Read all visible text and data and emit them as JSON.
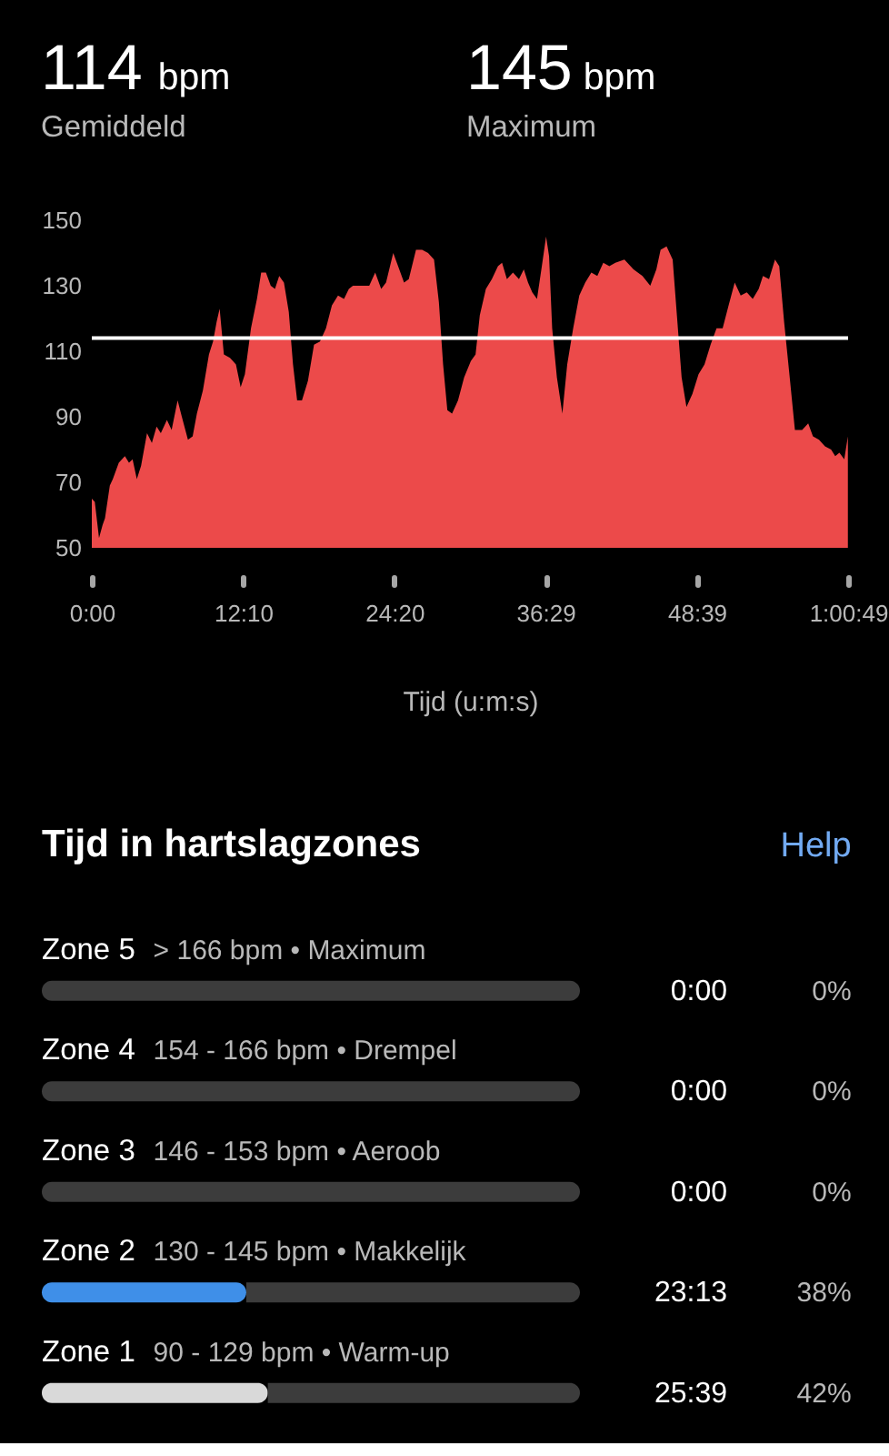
{
  "chart_data": [
    {
      "type": "area",
      "xlabel": "Tijd (u:m:s)",
      "annotations": [
        "114 bpm",
        "Gemiddeld",
        "145 bpm",
        "Maximum"
      ],
      "xlim": [
        0,
        60.817
      ],
      "xticks": [
        {
          "value": 0,
          "label": "0:00"
        },
        {
          "value": 12.167,
          "label": "12:10"
        },
        {
          "value": 24.333,
          "label": "24:20"
        },
        {
          "value": 36.483,
          "label": "36:29"
        },
        {
          "value": 48.65,
          "label": "48:39"
        },
        {
          "value": 60.817,
          "label": "1:00:49"
        }
      ],
      "ylim": [
        50,
        150
      ],
      "yticks": [
        50,
        70,
        90,
        110,
        130,
        150
      ],
      "ref_lines": [
        {
          "axis": "y",
          "value": 114,
          "color": "#ffffff"
        }
      ],
      "x": [
        0,
        0.24,
        0.58,
        0.87,
        1.06,
        1.45,
        1.69,
        2.17,
        2.66,
        2.99,
        3.28,
        3.62,
        3.96,
        4.44,
        4.83,
        5.21,
        5.55,
        6.04,
        6.42,
        6.9,
        7.24,
        7.73,
        8.11,
        8.45,
        8.93,
        9.42,
        9.75,
        10.04,
        10.28,
        10.62,
        11.11,
        11.59,
        11.97,
        12.31,
        12.8,
        13.28,
        13.62,
        14.0,
        14.39,
        14.73,
        15.07,
        15.45,
        15.84,
        16.18,
        16.51,
        16.9,
        17.38,
        17.87,
        18.35,
        18.83,
        19.31,
        19.8,
        20.28,
        20.67,
        21.0,
        21.73,
        22.31,
        22.79,
        23.27,
        23.66,
        24.24,
        24.63,
        25.11,
        25.49,
        26.07,
        26.56,
        27.04,
        27.52,
        27.91,
        28.25,
        28.59,
        28.97,
        29.45,
        29.94,
        30.48,
        30.86,
        31.2,
        31.69,
        32.17,
        32.66,
        32.99,
        33.38,
        33.87,
        34.35,
        34.74,
        35.08,
        35.42,
        35.8,
        36.19,
        36.53,
        36.77,
        37.02,
        37.4,
        37.84,
        38.23,
        38.71,
        39.2,
        39.68,
        40.17,
        40.65,
        41.13,
        41.62,
        42.1,
        42.83,
        43.56,
        44.28,
        44.91,
        45.4,
        45.74,
        46.22,
        46.71,
        47.05,
        47.43,
        47.82,
        48.3,
        48.79,
        49.27,
        49.76,
        50.24,
        50.73,
        51.21,
        51.7,
        52.18,
        52.67,
        53.15,
        53.63,
        53.97,
        54.46,
        54.94,
        55.28,
        55.67,
        56.15,
        56.54,
        57.12,
        57.61,
        57.99,
        58.48,
        58.96,
        59.45,
        59.78,
        60.12,
        60.51,
        60.8
      ],
      "series": [
        {
          "color": "#ec4a4a",
          "values": [
            65,
            64,
            53,
            57,
            59,
            69,
            71,
            76,
            78,
            76,
            77,
            71,
            75,
            85,
            82,
            87,
            85,
            89,
            86,
            95,
            90,
            83,
            84,
            91,
            98,
            109,
            113,
            119,
            123,
            109,
            108,
            106,
            99,
            103,
            117,
            126,
            134,
            134,
            130,
            129,
            133,
            131,
            122,
            106,
            95,
            95,
            101,
            112,
            113,
            117,
            124,
            127,
            126,
            129,
            130,
            130,
            130,
            134,
            129,
            131,
            140,
            136,
            131,
            132,
            141,
            141,
            140,
            138,
            125,
            106,
            92,
            91,
            95,
            102,
            107,
            109,
            121,
            129,
            132,
            136,
            137,
            132,
            134,
            132,
            135,
            131,
            128,
            126,
            136,
            145,
            139,
            117,
            102,
            91,
            106,
            117,
            127,
            131,
            134,
            133,
            137,
            136,
            137,
            138,
            135,
            133,
            130,
            135,
            141,
            142,
            138,
            121,
            102,
            93,
            97,
            103,
            106,
            112,
            117,
            117,
            124,
            131,
            127,
            128,
            126,
            129,
            133,
            132,
            138,
            136,
            119,
            101,
            86,
            86,
            88,
            84,
            83,
            81,
            80,
            78,
            79,
            77,
            84
          ]
        }
      ]
    },
    {
      "type": "bar",
      "orientation": "horizontal",
      "stacked": true,
      "title": "Tijd in hartslagzones",
      "categories": [
        "Zone 5",
        "Zone 4",
        "Zone 3",
        "Zone 2",
        "Zone 1"
      ],
      "xlim": [
        0,
        100
      ],
      "series": [
        {
          "colors": [
            null,
            null,
            null,
            "#3f8fe8",
            "#d9d9d9"
          ],
          "values": [
            0,
            0,
            0,
            38,
            42
          ],
          "value_labels": [
            "0%",
            "0%",
            "0%",
            "38%",
            "42%"
          ]
        },
        {
          "color": "#3c3c3c",
          "values": [
            100,
            100,
            100,
            62,
            58
          ]
        }
      ],
      "annotations": [
        "Help",
        "> 166 bpm • Maximum",
        "0:00",
        "154 - 166 bpm • Drempel",
        "0:00",
        "146 - 153 bpm • Aeroob",
        "0:00",
        "130 - 145 bpm • Makkelijk",
        "23:13",
        "90 - 129 bpm • Warm-up",
        "25:39"
      ]
    }
  ]
}
